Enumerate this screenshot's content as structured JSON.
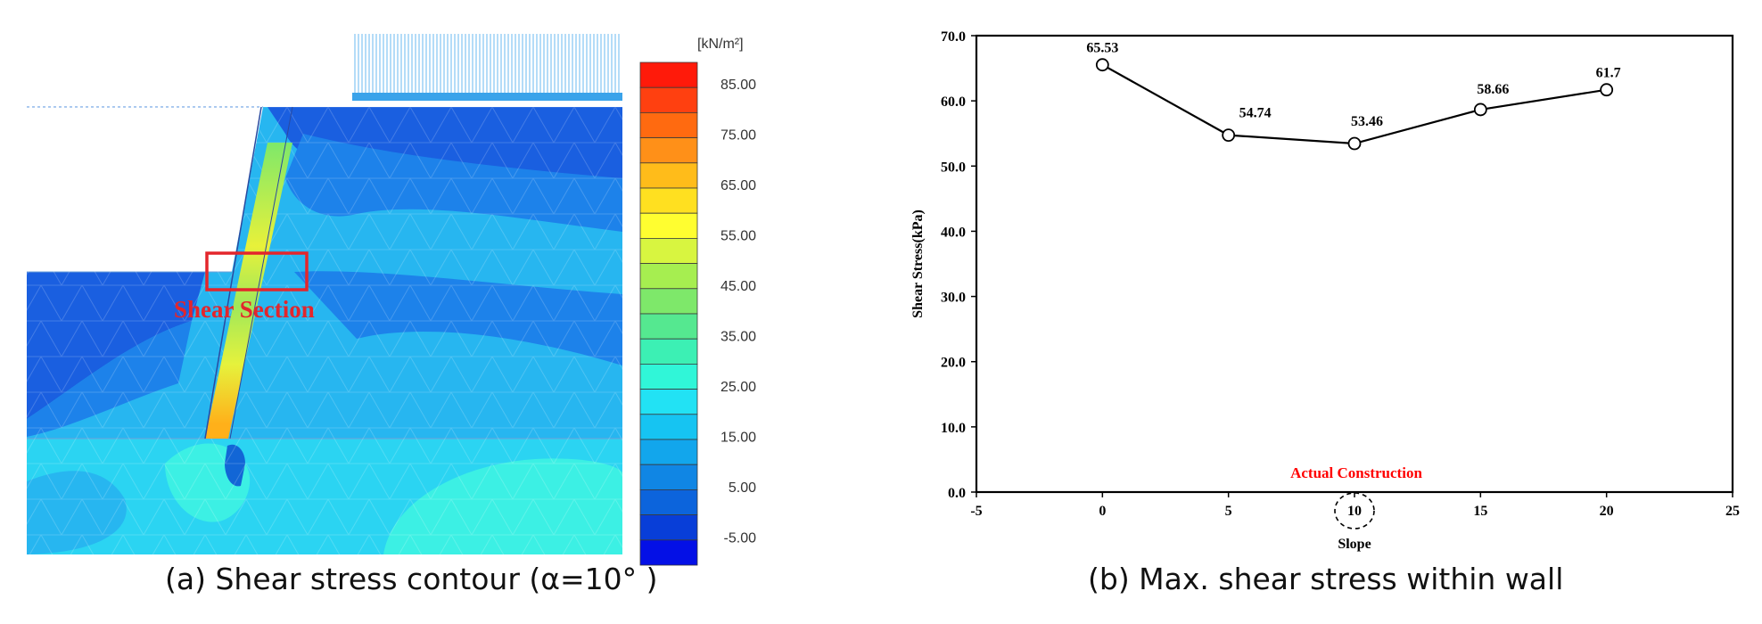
{
  "captions": {
    "a": "(a) Shear stress contour (α=10° )",
    "b": "(b) Max. shear stress within wall"
  },
  "contour": {
    "annotation": "Shear Section",
    "legend_unit": "[kN/m²]",
    "legend_labels": [
      "85.00",
      "75.00",
      "65.00",
      "55.00",
      "45.00",
      "35.00",
      "25.00",
      "15.00",
      "5.00",
      "-5.00"
    ],
    "legend_colors": [
      "#ff1a0a",
      "#ff4010",
      "#ff6a10",
      "#ff9018",
      "#ffbc1a",
      "#ffe020",
      "#fffe30",
      "#d8f540",
      "#a6ee50",
      "#7ee86a",
      "#55e890",
      "#3cf0b4",
      "#30f6d8",
      "#22e2f4",
      "#16c4f2",
      "#12a6ec",
      "#1086e4",
      "#0c64dc",
      "#083ed8",
      "#0410e6"
    ],
    "accent": "#e3262c"
  },
  "chart_data": {
    "type": "line",
    "x": [
      0,
      5,
      10,
      15,
      20
    ],
    "values": [
      65.53,
      54.74,
      53.46,
      58.66,
      61.7
    ],
    "point_labels": [
      "65.53",
      "54.74",
      "53.46",
      "58.66",
      "61.7"
    ],
    "title": "",
    "xlabel": "Slope",
    "ylabel": "Shear Stress(kPa)",
    "xlim": [
      -5,
      25
    ],
    "ylim": [
      0,
      70
    ],
    "x_ticks": [
      "-5",
      "0",
      "5",
      "10",
      "15",
      "20",
      "25"
    ],
    "y_ticks": [
      "0.0",
      "10.0",
      "20.0",
      "30.0",
      "40.0",
      "50.0",
      "60.0",
      "70.0"
    ],
    "annotation": "Actual Construction",
    "annotation_color": "#ff0000",
    "highlight_x": 10
  }
}
